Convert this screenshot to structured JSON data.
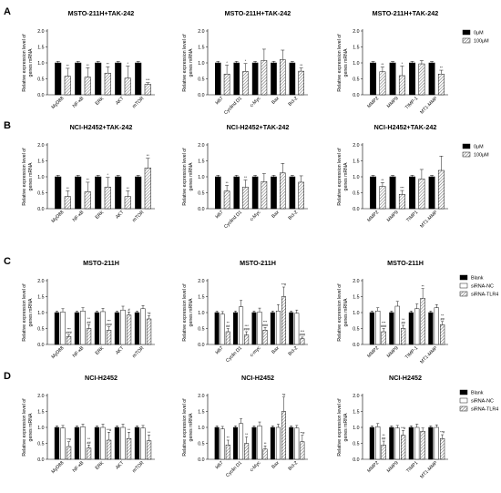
{
  "figure": {
    "row_labels": [
      "A",
      "B",
      "C",
      "D"
    ],
    "ylabel": "Relative expression level of genes mRNA",
    "ylabel_lines": [
      "Relative expression level of",
      "genes mRNA"
    ],
    "yticks": [
      0.0,
      0.5,
      1.0,
      1.5,
      2.0
    ],
    "ytick_labels": [
      "0.0",
      "0.5",
      "1.0",
      "1.5",
      "2.0"
    ],
    "colors": {
      "solid": "#000000",
      "hatch": "#8a8a8a",
      "white": "#ffffff",
      "axis": "#000000"
    }
  },
  "legends": {
    "two_group": [
      {
        "label": "0μM",
        "fill": "solid"
      },
      {
        "label": "100μM",
        "fill": "hatch"
      }
    ],
    "three_group": [
      {
        "label": "Blank",
        "fill": "solid"
      },
      {
        "label": "siRNA-NC",
        "fill": "white"
      },
      {
        "label": "siRNA-TLR4",
        "fill": "hatch"
      }
    ]
  },
  "chart_data": [
    {
      "type": "bar",
      "row": 0,
      "col": 0,
      "title": "MSTO-211H+TAK-242",
      "ylabel": "Relative expression level of genes mRNA",
      "ylim": [
        0,
        2
      ],
      "categories": [
        "MyD88",
        "NF-κB",
        "ERK",
        "AKT",
        "mTOR"
      ],
      "series": [
        {
          "name": "0μM",
          "fill": "solid",
          "values": [
            1,
            1,
            1,
            1,
            1
          ],
          "errors": [
            0.05,
            0.05,
            0.05,
            0.05,
            0.05
          ]
        },
        {
          "name": "100μM",
          "fill": "hatch",
          "values": [
            0.58,
            0.55,
            0.68,
            0.52,
            0.33
          ],
          "errors": [
            0.25,
            0.3,
            0.2,
            0.38,
            0.05
          ]
        }
      ],
      "annotations": [
        [
          [],
          [
            "**"
          ]
        ],
        [
          [],
          [
            "**"
          ]
        ],
        [
          [],
          [
            "**"
          ]
        ],
        [
          [],
          [
            "*"
          ]
        ],
        [
          [],
          [
            "***"
          ]
        ]
      ]
    },
    {
      "type": "bar",
      "row": 0,
      "col": 1,
      "title": "MSTO-211H+TAK-242",
      "ylabel": "Relative expression level of genes mRNA",
      "ylim": [
        0,
        2
      ],
      "categories": [
        "ki67",
        "Cyclind D1",
        "c-Myc",
        "Bax",
        "Bcl-2"
      ],
      "series": [
        {
          "name": "0μM",
          "fill": "solid",
          "values": [
            1,
            1,
            1,
            1,
            1
          ],
          "errors": [
            0.05,
            0.05,
            0.05,
            0.05,
            0.05
          ]
        },
        {
          "name": "100μM",
          "fill": "hatch",
          "values": [
            0.65,
            0.73,
            1.08,
            1.1,
            0.74
          ],
          "errors": [
            0.28,
            0.25,
            0.35,
            0.3,
            0.1
          ]
        }
      ],
      "annotations": [
        [
          [],
          [
            "*"
          ]
        ],
        [
          [],
          [
            "*"
          ]
        ],
        [
          [],
          []
        ],
        [
          [],
          []
        ],
        [
          [],
          [
            "**"
          ]
        ]
      ]
    },
    {
      "type": "bar",
      "row": 0,
      "col": 2,
      "title": "MSTO-211H+TAK-242",
      "ylabel": "Relative expression level of genes mRNA",
      "ylim": [
        0,
        2
      ],
      "categories": [
        "MMP2",
        "MMP9",
        "TIMP-1",
        "MT1-MMP"
      ],
      "series": [
        {
          "name": "0μM",
          "fill": "solid",
          "values": [
            1,
            1,
            1,
            1
          ],
          "errors": [
            0.05,
            0.05,
            0.05,
            0.05
          ]
        },
        {
          "name": "100μM",
          "fill": "hatch",
          "values": [
            0.72,
            0.6,
            0.97,
            0.65
          ],
          "errors": [
            0.15,
            0.3,
            0.1,
            0.12
          ]
        }
      ],
      "annotations": [
        [
          [],
          [
            "**"
          ]
        ],
        [
          [],
          [
            "*"
          ]
        ],
        [
          [],
          []
        ],
        [
          [],
          [
            "**"
          ]
        ]
      ]
    },
    {
      "type": "bar",
      "row": 1,
      "col": 0,
      "title": "NCI-H2452+TAK-242",
      "ylabel": "Relative expression level of genes mRNA",
      "ylim": [
        0,
        2
      ],
      "categories": [
        "MyD88",
        "NF-κB",
        "ERK",
        "AKT",
        "mTOR"
      ],
      "series": [
        {
          "name": "0μM",
          "fill": "solid",
          "values": [
            1,
            1,
            1,
            1,
            1
          ],
          "errors": [
            0.05,
            0.05,
            0.05,
            0.05,
            0.05
          ]
        },
        {
          "name": "100μM",
          "fill": "hatch",
          "values": [
            0.38,
            0.53,
            0.68,
            0.38,
            1.28
          ],
          "errors": [
            0.18,
            0.3,
            0.3,
            0.18,
            0.3
          ]
        }
      ],
      "annotations": [
        [
          [],
          [
            "**"
          ]
        ],
        [
          [],
          [
            "**"
          ]
        ],
        [
          [],
          [
            "*"
          ]
        ],
        [
          [],
          [
            "**"
          ]
        ],
        [
          [],
          [
            "**"
          ]
        ]
      ]
    },
    {
      "type": "bar",
      "row": 1,
      "col": 1,
      "title": "NCI-H2452+TAK-242",
      "ylabel": "Relative expression level of genes mRNA",
      "ylim": [
        0,
        2
      ],
      "categories": [
        "ki67",
        "Cyclind D1",
        "c-Myc",
        "Bax",
        "Bcl-2"
      ],
      "series": [
        {
          "name": "0μM",
          "fill": "solid",
          "values": [
            1,
            1,
            1,
            1,
            1
          ],
          "errors": [
            0.05,
            0.05,
            0.05,
            0.05,
            0.05
          ]
        },
        {
          "name": "100μM",
          "fill": "hatch",
          "values": [
            0.55,
            0.68,
            0.85,
            1.12,
            0.83
          ],
          "errors": [
            0.18,
            0.22,
            0.25,
            0.3,
            0.2
          ]
        }
      ],
      "annotations": [
        [
          [],
          [
            "**"
          ]
        ],
        [
          [],
          [
            "**"
          ]
        ],
        [
          [],
          []
        ],
        [
          [],
          []
        ],
        [
          [],
          []
        ]
      ]
    },
    {
      "type": "bar",
      "row": 1,
      "col": 2,
      "title": "NCI-H2452+TAK-242",
      "ylabel": "Relative expression level of genes mRNA",
      "ylim": [
        0,
        2
      ],
      "categories": [
        "MMP2",
        "MMP9",
        "TIMP1",
        "MT1-MMP"
      ],
      "series": [
        {
          "name": "0μM",
          "fill": "solid",
          "values": [
            1,
            1,
            1,
            1
          ],
          "errors": [
            0.05,
            0.05,
            0.05,
            0.05
          ]
        },
        {
          "name": "100μM",
          "fill": "hatch",
          "values": [
            0.7,
            0.45,
            0.93,
            1.2
          ],
          "errors": [
            0.12,
            0.12,
            0.3,
            0.45
          ]
        }
      ],
      "annotations": [
        [
          [],
          [
            "**"
          ]
        ],
        [
          [],
          [
            "***"
          ]
        ],
        [
          [],
          []
        ],
        [
          [],
          []
        ]
      ]
    },
    {
      "type": "bar",
      "row": 2,
      "col": 0,
      "title": "MSTO-211H",
      "ylabel": "Relative expression level of genes mRNA",
      "ylim": [
        0,
        2
      ],
      "categories": [
        "MyD88",
        "NF-κB",
        "ERK",
        "AKT",
        "mTOR"
      ],
      "series": [
        {
          "name": "Blank",
          "fill": "solid",
          "values": [
            1,
            1,
            1,
            1,
            1
          ],
          "errors": [
            0.05,
            0.05,
            0.05,
            0.05,
            0.05
          ]
        },
        {
          "name": "siRNA-NC",
          "fill": "white",
          "values": [
            1.02,
            1.05,
            1.03,
            1.08,
            1.12
          ],
          "errors": [
            0.1,
            0.1,
            0.1,
            0.12,
            0.1
          ]
        },
        {
          "name": "siRNA-TLR4",
          "fill": "hatch",
          "values": [
            0.25,
            0.5,
            0.45,
            0.92,
            0.8
          ],
          "errors": [
            0.05,
            0.12,
            0.1,
            0.1,
            0.1
          ]
        }
      ],
      "annotations": [
        [
          [],
          [],
          [
            "***",
            "###"
          ]
        ],
        [
          [],
          [],
          [
            "**",
            "##"
          ]
        ],
        [
          [],
          [],
          [
            "***",
            "###"
          ]
        ],
        [
          [],
          [],
          [
            "#"
          ]
        ],
        [
          [],
          [],
          [
            "*#"
          ]
        ]
      ]
    },
    {
      "type": "bar",
      "row": 2,
      "col": 1,
      "title": "MSTO-211H",
      "ylabel": "Relative expression level of genes mRNA",
      "ylim": [
        0,
        2
      ],
      "categories": [
        "ki67",
        "Cyclin D1",
        "c-myc",
        "Bax",
        "Bcl-2"
      ],
      "series": [
        {
          "name": "Blank",
          "fill": "solid",
          "values": [
            1,
            1,
            1,
            1,
            1
          ],
          "errors": [
            0.05,
            0.05,
            0.05,
            0.05,
            0.05
          ]
        },
        {
          "name": "siRNA-NC",
          "fill": "white",
          "values": [
            0.95,
            1.18,
            1.02,
            1.05,
            0.98
          ],
          "errors": [
            0.08,
            0.2,
            0.12,
            0.2,
            0.1
          ]
        },
        {
          "name": "siRNA-TLR4",
          "fill": "hatch",
          "values": [
            0.4,
            0.3,
            0.45,
            1.5,
            0.18
          ],
          "errors": [
            0.1,
            0.1,
            0.08,
            0.3,
            0.05
          ]
        }
      ],
      "annotations": [
        [
          [],
          [],
          [
            "**",
            "##"
          ]
        ],
        [
          [],
          [],
          [
            "***",
            "###"
          ]
        ],
        [
          [],
          [],
          [
            "***",
            "###"
          ]
        ],
        [
          [],
          [],
          [
            "**#"
          ]
        ],
        [
          [],
          [],
          [
            "***",
            "###"
          ]
        ]
      ]
    },
    {
      "type": "bar",
      "row": 2,
      "col": 2,
      "title": "MSTO-211H",
      "ylabel": "Relative expression level of genes mRNA",
      "ylim": [
        0,
        2
      ],
      "categories": [
        "MMP2",
        "MMP9",
        "TIMP-1",
        "MT1-MMP"
      ],
      "series": [
        {
          "name": "Blank",
          "fill": "solid",
          "values": [
            1,
            1,
            1,
            1
          ],
          "errors": [
            0.05,
            0.05,
            0.05,
            0.05
          ]
        },
        {
          "name": "siRNA-NC",
          "fill": "white",
          "values": [
            1.05,
            1.2,
            1.12,
            1.15
          ],
          "errors": [
            0.1,
            0.15,
            0.15,
            0.1
          ]
        },
        {
          "name": "siRNA-TLR4",
          "fill": "hatch",
          "values": [
            0.4,
            0.5,
            1.45,
            0.62
          ],
          "errors": [
            0.1,
            0.1,
            0.3,
            0.1
          ]
        }
      ],
      "annotations": [
        [
          [],
          [],
          [
            "***",
            "###"
          ]
        ],
        [
          [],
          [],
          [
            "**",
            "##"
          ]
        ],
        [
          [],
          [],
          [
            "**"
          ]
        ],
        [
          [],
          [],
          [
            "**",
            "##"
          ]
        ]
      ]
    },
    {
      "type": "bar",
      "row": 3,
      "col": 0,
      "title": "NCI-H2452",
      "ylabel": "Relative expression level of genes mRNA",
      "ylim": [
        0,
        2
      ],
      "categories": [
        "MyD88",
        "NF-κB",
        "ERK",
        "AKT",
        "mTOR"
      ],
      "series": [
        {
          "name": "Blank",
          "fill": "solid",
          "values": [
            1,
            1,
            1,
            1,
            1
          ],
          "errors": [
            0.05,
            0.05,
            0.05,
            0.05,
            0.05
          ]
        },
        {
          "name": "siRNA-NC",
          "fill": "white",
          "values": [
            0.98,
            1.02,
            1.0,
            1.0,
            0.98
          ],
          "errors": [
            0.08,
            0.08,
            0.1,
            0.1,
            0.08
          ]
        },
        {
          "name": "siRNA-TLR4",
          "fill": "hatch",
          "values": [
            0.4,
            0.35,
            0.6,
            0.65,
            0.58
          ],
          "errors": [
            0.15,
            0.1,
            0.25,
            0.2,
            0.18
          ]
        }
      ],
      "annotations": [
        [
          [],
          [],
          [
            "**#"
          ]
        ],
        [
          [],
          [],
          [
            "**",
            "##"
          ]
        ],
        [
          [],
          [],
          [
            "**#"
          ]
        ],
        [
          [],
          [],
          [
            "**"
          ]
        ],
        [
          [],
          [],
          [
            "**"
          ]
        ]
      ]
    },
    {
      "type": "bar",
      "row": 3,
      "col": 1,
      "title": "NCI-H2452",
      "ylabel": "Relative expression level of genes mRNA",
      "ylim": [
        0,
        2
      ],
      "categories": [
        "ki67",
        "Cyclin D1",
        "c-Myc",
        "Bax",
        "Bcl-2"
      ],
      "series": [
        {
          "name": "Blank",
          "fill": "solid",
          "values": [
            1,
            1,
            1,
            1,
            1
          ],
          "errors": [
            0.05,
            0.05,
            0.05,
            0.05,
            0.05
          ]
        },
        {
          "name": "siRNA-NC",
          "fill": "white",
          "values": [
            0.95,
            1.12,
            1.05,
            1.0,
            0.98
          ],
          "errors": [
            0.08,
            0.15,
            0.12,
            0.1,
            0.08
          ]
        },
        {
          "name": "siRNA-TLR4",
          "fill": "hatch",
          "values": [
            0.45,
            0.5,
            0.32,
            1.5,
            0.55
          ],
          "errors": [
            0.15,
            0.2,
            0.1,
            0.45,
            0.2
          ]
        }
      ],
      "annotations": [
        [
          [],
          [],
          [
            "**"
          ]
        ],
        [
          [],
          [],
          [
            "**"
          ]
        ],
        [
          [],
          [],
          [
            "**"
          ]
        ],
        [
          [],
          [],
          [
            "*#"
          ]
        ],
        [
          [],
          [],
          [
            "**#"
          ]
        ]
      ]
    },
    {
      "type": "bar",
      "row": 3,
      "col": 2,
      "title": "NCI-H2452",
      "ylabel": "Relative expression level of genes mRNA",
      "ylim": [
        0,
        2
      ],
      "categories": [
        "MMP2",
        "MMP9",
        "TIMP1",
        "MT1-MMP"
      ],
      "series": [
        {
          "name": "Blank",
          "fill": "solid",
          "values": [
            1,
            1,
            1,
            1
          ],
          "errors": [
            0.05,
            0.05,
            0.05,
            0.05
          ]
        },
        {
          "name": "siRNA-NC",
          "fill": "white",
          "values": [
            1.02,
            0.98,
            1.0,
            1.0
          ],
          "errors": [
            0.1,
            0.08,
            0.1,
            0.08
          ]
        },
        {
          "name": "siRNA-TLR4",
          "fill": "hatch",
          "values": [
            0.45,
            0.75,
            0.88,
            0.65
          ],
          "errors": [
            0.12,
            0.15,
            0.1,
            0.12
          ]
        }
      ],
      "annotations": [
        [
          [],
          [],
          [
            "**",
            "##"
          ]
        ],
        [
          [],
          [],
          [
            "**#"
          ]
        ],
        [
          [],
          [],
          []
        ],
        [
          [],
          [],
          [
            "**#"
          ]
        ]
      ]
    }
  ]
}
